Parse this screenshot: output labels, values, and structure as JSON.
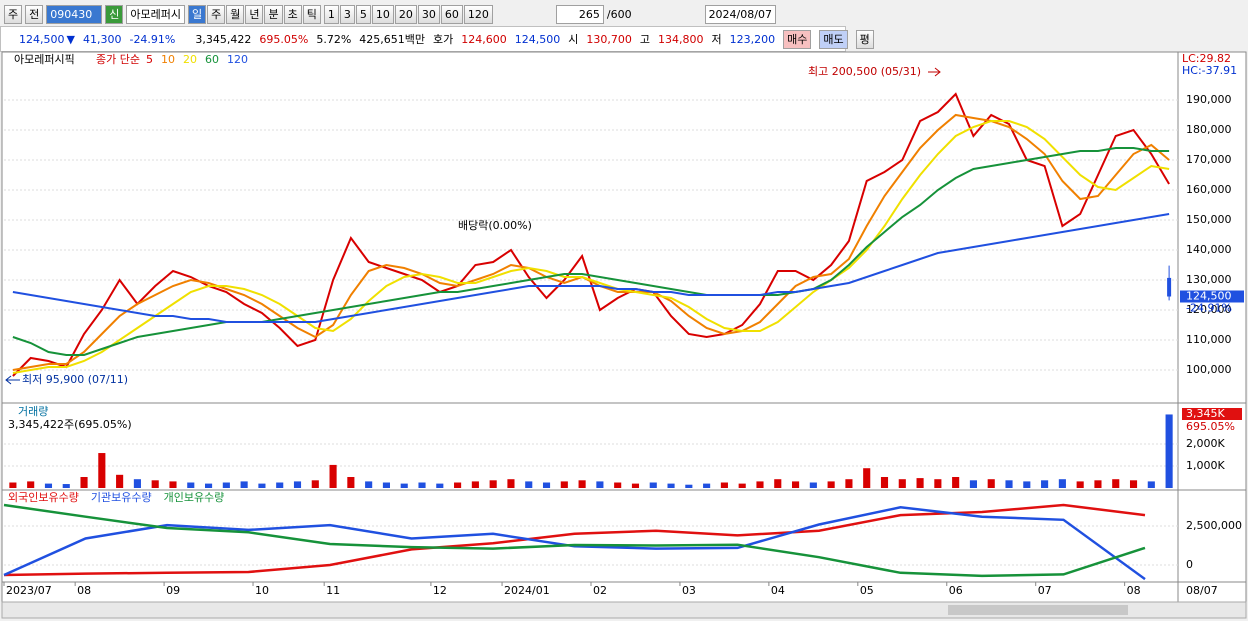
{
  "toolbar": {
    "market": "주",
    "prev": "전",
    "code": "090430",
    "name": "아모레퍼시",
    "badge": "신",
    "periods": [
      "일",
      "주",
      "월",
      "년",
      "분",
      "초",
      "틱"
    ],
    "intervals": [
      "1",
      "3",
      "5",
      "10",
      "20",
      "30",
      "60",
      "120"
    ],
    "count": "265",
    "max": "/600",
    "date": "2024/08/07"
  },
  "quote": {
    "price": "124,500",
    "arrow": "▼",
    "change": "41,300",
    "change_pct": "-24.91%",
    "volume": "3,345,422",
    "volume_pct": "695.05%",
    "turnover": "5.72%",
    "amount": "425,651백만",
    "bid_label": "호가",
    "ask": "124,600",
    "bid": "124,500",
    "open_label": "시",
    "open": "130,700",
    "high_label": "고",
    "high": "134,800",
    "low_label": "저",
    "low": "123,200",
    "buy": "매수",
    "sell": "매도",
    "avg": "평"
  },
  "pane": {
    "name": "아모레퍼시픽",
    "ma_label": "종가 단순",
    "lc": "LC:29.82",
    "hc": "HC:-37.91",
    "high_note": "최고 200,500 (05/31)",
    "low_note": "최저 95,900 (07/11)",
    "dividend_note": "배당락(0.00%)",
    "volume_title": "거래량",
    "volume_note": "3,345,422주(695.05%)",
    "volume_last": "3,345K",
    "volume_pct": "695.05%",
    "end_date": "08/07"
  },
  "chart_data": [
    {
      "type": "line",
      "categories": [
        "2023/07",
        null,
        null,
        null,
        "08",
        null,
        null,
        null,
        null,
        "09",
        null,
        null,
        null,
        null,
        "10",
        null,
        null,
        null,
        "11",
        null,
        null,
        null,
        null,
        null,
        "12",
        null,
        null,
        null,
        "2024/01",
        null,
        null,
        null,
        null,
        "02",
        null,
        null,
        null,
        null,
        "03",
        null,
        null,
        null,
        null,
        "04",
        null,
        null,
        null,
        null,
        "05",
        null,
        null,
        null,
        null,
        "06",
        null,
        null,
        null,
        null,
        "07",
        null,
        null,
        null,
        null,
        "08",
        null,
        null
      ],
      "series": [
        {
          "name": "5",
          "color": "#d80000",
          "values": [
            98000,
            104000,
            103000,
            101000,
            112000,
            120000,
            130000,
            122000,
            128000,
            133000,
            131000,
            128000,
            126000,
            122000,
            119000,
            114000,
            108000,
            110000,
            130000,
            144000,
            136000,
            134000,
            132000,
            130000,
            126000,
            128000,
            135000,
            136000,
            140000,
            131000,
            124000,
            130000,
            138000,
            120000,
            124000,
            127000,
            126000,
            118000,
            112000,
            111000,
            112000,
            115000,
            122000,
            133000,
            133000,
            130000,
            135000,
            143000,
            163000,
            166000,
            170000,
            183000,
            186000,
            192000,
            178000,
            185000,
            182000,
            170000,
            168000,
            148000,
            152000,
            165000,
            178000,
            180000,
            172000,
            162000
          ]
        },
        {
          "name": "10",
          "color": "#f08000",
          "values": [
            100000,
            101000,
            102000,
            102000,
            106000,
            112000,
            118000,
            122000,
            125000,
            128000,
            130000,
            129000,
            127000,
            125000,
            122000,
            118000,
            114000,
            111000,
            115000,
            125000,
            133000,
            135000,
            134000,
            132000,
            129000,
            128000,
            130000,
            132000,
            135000,
            134000,
            131000,
            129000,
            131000,
            128000,
            126000,
            126000,
            126000,
            123000,
            118000,
            114000,
            112000,
            113000,
            116000,
            122000,
            128000,
            131000,
            132000,
            137000,
            148000,
            158000,
            166000,
            174000,
            180000,
            185000,
            184000,
            183000,
            181000,
            177000,
            172000,
            163000,
            157000,
            158000,
            165000,
            172000,
            175000,
            170000
          ]
        },
        {
          "name": "20",
          "color": "#f0e000",
          "values": [
            99000,
            100000,
            101000,
            101000,
            103000,
            106000,
            110000,
            114000,
            118000,
            122000,
            126000,
            128000,
            128000,
            127000,
            125000,
            122000,
            118000,
            114000,
            113000,
            117000,
            123000,
            128000,
            131000,
            132000,
            131000,
            129000,
            129000,
            131000,
            133000,
            134000,
            133000,
            131000,
            131000,
            129000,
            127000,
            126000,
            125000,
            124000,
            121000,
            117000,
            114000,
            113000,
            113000,
            116000,
            121000,
            126000,
            130000,
            134000,
            140000,
            148000,
            157000,
            165000,
            172000,
            178000,
            181000,
            183000,
            183000,
            181000,
            177000,
            171000,
            165000,
            161000,
            160000,
            164000,
            168000,
            167000
          ]
        },
        {
          "name": "60",
          "color": "#16923a",
          "values": [
            111000,
            109000,
            106000,
            105000,
            105000,
            107000,
            109000,
            111000,
            112000,
            113000,
            114000,
            115000,
            116000,
            116000,
            116000,
            117000,
            118000,
            119000,
            120000,
            121000,
            122000,
            123000,
            124000,
            125000,
            126000,
            126000,
            127000,
            128000,
            129000,
            130000,
            131000,
            132000,
            132000,
            131000,
            130000,
            129000,
            128000,
            127000,
            126000,
            125000,
            125000,
            125000,
            125000,
            125000,
            126000,
            127000,
            130000,
            135000,
            141000,
            146000,
            151000,
            155000,
            160000,
            164000,
            167000,
            168000,
            169000,
            170000,
            171000,
            172000,
            173000,
            173000,
            174000,
            174000,
            173000,
            173000
          ]
        },
        {
          "name": "120",
          "color": "#2050e0",
          "values": [
            126000,
            125000,
            124000,
            123000,
            122000,
            121000,
            120000,
            119000,
            118000,
            118000,
            117000,
            117000,
            116000,
            116000,
            116000,
            116000,
            116000,
            116000,
            117000,
            118000,
            119000,
            120000,
            121000,
            122000,
            123000,
            124000,
            125000,
            126000,
            127000,
            128000,
            128000,
            128000,
            128000,
            128000,
            127000,
            127000,
            126000,
            126000,
            125000,
            125000,
            125000,
            125000,
            125000,
            126000,
            126000,
            127000,
            128000,
            129000,
            131000,
            133000,
            135000,
            137000,
            139000,
            140000,
            141000,
            142000,
            143000,
            144000,
            145000,
            146000,
            147000,
            148000,
            149000,
            150000,
            151000,
            152000
          ]
        }
      ],
      "last_candle": {
        "open": 130700,
        "high": 134800,
        "low": 123200,
        "close": 124500
      },
      "ylim": [
        90000,
        205000
      ],
      "yticks": [
        {
          "value": 100000,
          "label": "100,000"
        },
        {
          "value": 110000,
          "label": "110,000"
        },
        {
          "value": 120000,
          "label": "120,000"
        },
        {
          "value": 130000,
          "label": "130,000"
        },
        {
          "value": 140000,
          "label": "140,000"
        },
        {
          "value": 150000,
          "label": "150,000"
        },
        {
          "value": 160000,
          "label": "160,000"
        },
        {
          "value": 170000,
          "label": "170,000"
        },
        {
          "value": 180000,
          "label": "180,000"
        },
        {
          "value": 190000,
          "label": "190,000"
        }
      ]
    },
    {
      "type": "bar",
      "up_color": "#d80000",
      "down_color": "#2050e0",
      "values": [
        250,
        300,
        200,
        180,
        500,
        1590,
        600,
        400,
        350,
        300,
        250,
        200,
        250,
        300,
        200,
        250,
        300,
        350,
        1050,
        500,
        300,
        250,
        200,
        250,
        200,
        250,
        300,
        350,
        400,
        300,
        250,
        300,
        350,
        300,
        250,
        200,
        250,
        200,
        150,
        200,
        250,
        200,
        300,
        400,
        300,
        250,
        300,
        400,
        900,
        500,
        400,
        450,
        400,
        500,
        350,
        400,
        350,
        300,
        350,
        400,
        300,
        350,
        400,
        350,
        300,
        3345
      ],
      "ylim": [
        0,
        3730
      ],
      "yticks": [
        {
          "value": 1000,
          "label": "1,000K"
        },
        {
          "value": 2000,
          "label": "2,000K"
        }
      ]
    },
    {
      "type": "line",
      "series": [
        {
          "name": "외국인보유수량",
          "color": "#e01010",
          "values": [
            -640000,
            -550000,
            -500000,
            -450000,
            0,
            1000000,
            1400000,
            2000000,
            2200000,
            1900000,
            2200000,
            3200000,
            3400000,
            3850000,
            3200000
          ]
        },
        {
          "name": "기관보유수량",
          "color": "#2050e0",
          "values": [
            -640000,
            1700000,
            2560000,
            2250000,
            2560000,
            1700000,
            2000000,
            1200000,
            1050000,
            1100000,
            2600000,
            3700000,
            3100000,
            2900000,
            -900000
          ]
        },
        {
          "name": "개인보유수량",
          "color": "#16923a",
          "values": [
            3850000,
            3100000,
            2370000,
            2100000,
            1350000,
            1150000,
            1050000,
            1280000,
            1250000,
            1300000,
            500000,
            -500000,
            -700000,
            -600000,
            1100000
          ]
        }
      ],
      "ylim": [
        -960000,
        4680000
      ],
      "yticks": [
        0,
        {
          "value": 2500000,
          "label": "2,500,000"
        }
      ]
    }
  ]
}
